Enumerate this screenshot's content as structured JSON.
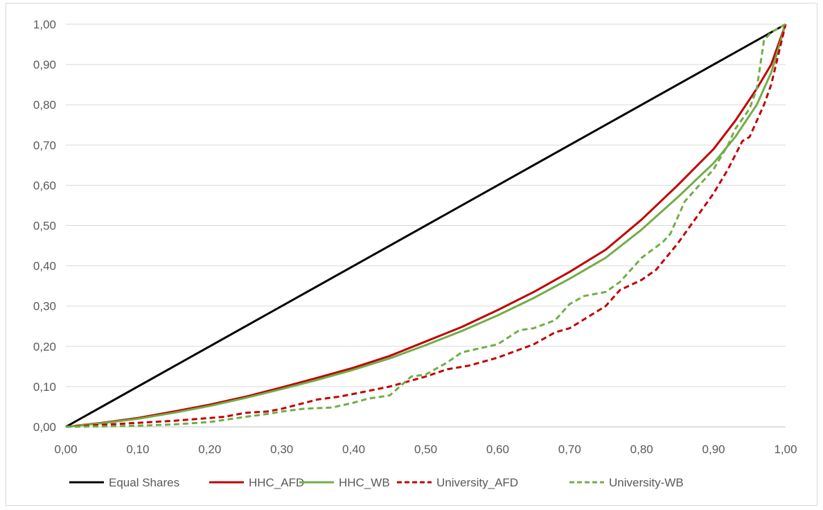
{
  "chart_data": {
    "type": "line",
    "title": "",
    "xlabel": "",
    "ylabel": "",
    "xlim": [
      0,
      1
    ],
    "ylim": [
      0,
      1
    ],
    "x_ticks": [
      "0,00",
      "0,10",
      "0,20",
      "0,30",
      "0,40",
      "0,50",
      "0,60",
      "0,70",
      "0,80",
      "0,90",
      "1,00"
    ],
    "y_ticks": [
      "0,00",
      "0,10",
      "0,20",
      "0,30",
      "0,40",
      "0,50",
      "0,60",
      "0,70",
      "0,80",
      "0,90",
      "1,00"
    ],
    "grid": "horizontal",
    "legend_position": "bottom",
    "series": [
      {
        "name": "Equal Shares",
        "color": "#000000",
        "dash": "solid",
        "points": [
          [
            0,
            0
          ],
          [
            1,
            1
          ]
        ]
      },
      {
        "name": "HHC_AFD",
        "color": "#c00000",
        "dash": "solid",
        "points": [
          [
            0,
            0
          ],
          [
            0.05,
            0.01
          ],
          [
            0.1,
            0.022
          ],
          [
            0.15,
            0.038
          ],
          [
            0.2,
            0.055
          ],
          [
            0.25,
            0.075
          ],
          [
            0.3,
            0.098
          ],
          [
            0.35,
            0.122
          ],
          [
            0.4,
            0.147
          ],
          [
            0.45,
            0.176
          ],
          [
            0.5,
            0.212
          ],
          [
            0.55,
            0.248
          ],
          [
            0.6,
            0.29
          ],
          [
            0.65,
            0.335
          ],
          [
            0.7,
            0.385
          ],
          [
            0.75,
            0.44
          ],
          [
            0.8,
            0.515
          ],
          [
            0.85,
            0.6
          ],
          [
            0.9,
            0.69
          ],
          [
            0.93,
            0.76
          ],
          [
            0.96,
            0.84
          ],
          [
            0.98,
            0.9
          ],
          [
            1,
            1
          ]
        ]
      },
      {
        "name": "HHC_WB",
        "color": "#70ad47",
        "dash": "solid",
        "points": [
          [
            0,
            0
          ],
          [
            0.05,
            0.009
          ],
          [
            0.1,
            0.02
          ],
          [
            0.15,
            0.035
          ],
          [
            0.2,
            0.052
          ],
          [
            0.25,
            0.072
          ],
          [
            0.3,
            0.094
          ],
          [
            0.35,
            0.117
          ],
          [
            0.4,
            0.142
          ],
          [
            0.45,
            0.17
          ],
          [
            0.5,
            0.203
          ],
          [
            0.55,
            0.238
          ],
          [
            0.6,
            0.277
          ],
          [
            0.65,
            0.32
          ],
          [
            0.7,
            0.368
          ],
          [
            0.75,
            0.42
          ],
          [
            0.8,
            0.49
          ],
          [
            0.85,
            0.57
          ],
          [
            0.9,
            0.655
          ],
          [
            0.93,
            0.72
          ],
          [
            0.96,
            0.8
          ],
          [
            0.98,
            0.88
          ],
          [
            1,
            1
          ]
        ]
      },
      {
        "name": "University_AFD",
        "color": "#c00000",
        "dash": "dashed",
        "points": [
          [
            0,
            0
          ],
          [
            0.05,
            0.005
          ],
          [
            0.1,
            0.01
          ],
          [
            0.15,
            0.015
          ],
          [
            0.2,
            0.022
          ],
          [
            0.22,
            0.025
          ],
          [
            0.25,
            0.035
          ],
          [
            0.28,
            0.038
          ],
          [
            0.3,
            0.045
          ],
          [
            0.35,
            0.068
          ],
          [
            0.38,
            0.075
          ],
          [
            0.4,
            0.082
          ],
          [
            0.45,
            0.1
          ],
          [
            0.5,
            0.125
          ],
          [
            0.53,
            0.143
          ],
          [
            0.56,
            0.152
          ],
          [
            0.6,
            0.172
          ],
          [
            0.65,
            0.205
          ],
          [
            0.68,
            0.235
          ],
          [
            0.7,
            0.245
          ],
          [
            0.75,
            0.3
          ],
          [
            0.77,
            0.34
          ],
          [
            0.8,
            0.365
          ],
          [
            0.82,
            0.39
          ],
          [
            0.85,
            0.455
          ],
          [
            0.88,
            0.53
          ],
          [
            0.9,
            0.58
          ],
          [
            0.92,
            0.64
          ],
          [
            0.94,
            0.71
          ],
          [
            0.95,
            0.72
          ],
          [
            0.97,
            0.8
          ],
          [
            0.98,
            0.85
          ],
          [
            1,
            1
          ]
        ]
      },
      {
        "name": "University-WB",
        "color": "#70ad47",
        "dash": "dashed",
        "points": [
          [
            0,
            0
          ],
          [
            0.05,
            0.001
          ],
          [
            0.1,
            0.003
          ],
          [
            0.15,
            0.006
          ],
          [
            0.2,
            0.012
          ],
          [
            0.25,
            0.025
          ],
          [
            0.28,
            0.032
          ],
          [
            0.3,
            0.038
          ],
          [
            0.33,
            0.045
          ],
          [
            0.37,
            0.048
          ],
          [
            0.4,
            0.06
          ],
          [
            0.42,
            0.07
          ],
          [
            0.45,
            0.078
          ],
          [
            0.48,
            0.125
          ],
          [
            0.5,
            0.13
          ],
          [
            0.53,
            0.16
          ],
          [
            0.55,
            0.185
          ],
          [
            0.57,
            0.193
          ],
          [
            0.6,
            0.205
          ],
          [
            0.63,
            0.24
          ],
          [
            0.65,
            0.245
          ],
          [
            0.68,
            0.265
          ],
          [
            0.7,
            0.305
          ],
          [
            0.72,
            0.325
          ],
          [
            0.75,
            0.335
          ],
          [
            0.77,
            0.36
          ],
          [
            0.8,
            0.42
          ],
          [
            0.83,
            0.46
          ],
          [
            0.84,
            0.48
          ],
          [
            0.86,
            0.56
          ],
          [
            0.88,
            0.6
          ],
          [
            0.9,
            0.64
          ],
          [
            0.92,
            0.7
          ],
          [
            0.93,
            0.74
          ],
          [
            0.95,
            0.79
          ],
          [
            0.96,
            0.84
          ],
          [
            0.97,
            0.96
          ],
          [
            0.98,
            0.98
          ],
          [
            1,
            1
          ]
        ]
      }
    ]
  }
}
